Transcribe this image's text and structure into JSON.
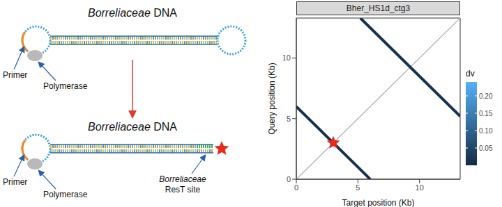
{
  "diagram": {
    "top": {
      "title": "Borreliaceae DNA",
      "primer": "Primer",
      "polymerase": "Polymerase"
    },
    "bottom": {
      "title": "Borreliaceae DNA",
      "primer": "Primer",
      "polymerase": "Polymerase",
      "site_label": "Borreliaceae ResT site"
    }
  },
  "chart_data": {
    "type": "line",
    "title": "Bher_HS1d_ctg3",
    "x_label": "Target position (Kb)",
    "y_label": "Query position (Kb)",
    "xlim": [
      0,
      13.3
    ],
    "ylim": [
      0,
      13.3
    ],
    "xticks": [
      0,
      5,
      10
    ],
    "yticks": [
      0,
      5,
      10
    ],
    "series": [
      {
        "x": [
          0,
          6
        ],
        "values": [
          6,
          0
        ],
        "dv": 0.01
      },
      {
        "x": [
          5.2,
          13.3
        ],
        "values": [
          13.3,
          5.2
        ],
        "dv": 0.01
      }
    ],
    "reference_line": {
      "x": [
        0,
        13.3
      ],
      "values": [
        0,
        13.3
      ],
      "color": "#aaaaaa"
    },
    "annotations": [
      {
        "x": 3,
        "y": 3,
        "marker": "star",
        "color": "#e8291c"
      }
    ],
    "colorbar": {
      "title": "dv",
      "range": [
        0,
        0.24
      ],
      "ticks": [
        0.05,
        {
          "value": 0.1,
          "label": "0.10"
        },
        0.15,
        {
          "value": 0.2,
          "label": "0.20"
        }
      ],
      "colors": [
        "#132b43",
        "#56b1f7"
      ]
    }
  }
}
